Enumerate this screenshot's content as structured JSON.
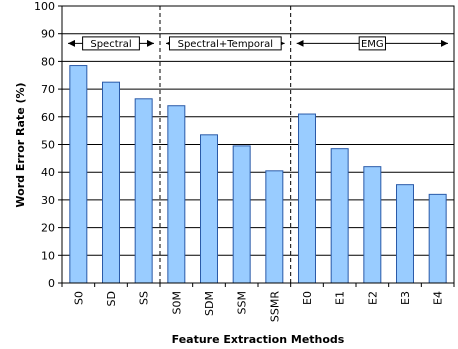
{
  "chart_data": {
    "type": "bar",
    "categories": [
      "S0",
      "SD",
      "SS",
      "S0M",
      "SDM",
      "SSM",
      "SSMR",
      "E0",
      "E1",
      "E2",
      "E3",
      "E4"
    ],
    "values": [
      78.5,
      72.5,
      66.5,
      64,
      53.5,
      49.5,
      40.5,
      61,
      48.5,
      42,
      35.5,
      32
    ],
    "title": "",
    "xlabel": "Feature Extraction Methods",
    "ylabel": "Word Error Rate (%)",
    "ylim": [
      0,
      100
    ],
    "yticks": [
      0,
      10,
      20,
      30,
      40,
      50,
      60,
      70,
      80,
      90,
      100
    ],
    "grid": true,
    "legend": "none",
    "bar_color": "#99ccff",
    "bar_edge_color": "#2a5aa8",
    "groups": [
      {
        "label": "Spectral",
        "start": 0,
        "end": 2
      },
      {
        "label": "Spectral+Temporal",
        "start": 3,
        "end": 6
      },
      {
        "label": "EMG",
        "start": 7,
        "end": 11
      }
    ]
  }
}
